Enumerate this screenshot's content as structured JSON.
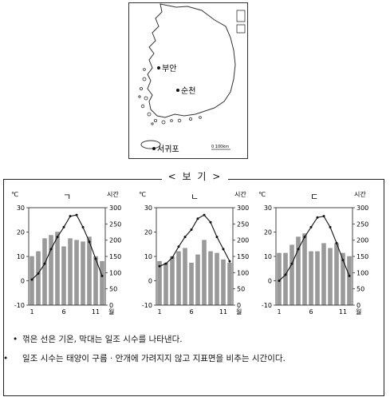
{
  "map": {
    "places": [
      "부안",
      "순천",
      "서귀포"
    ],
    "scale_text": "0  100km"
  },
  "bogi_title": "< 보 기 >",
  "notes": [
    "꺾은 선은 기온, 막대는 일조 시수를 나타낸다.",
    "일조 시수는 태양이 구름 · 안개에 가려지지 않고 지표면을 비추는 시간이다."
  ],
  "chart_data": [
    {
      "type": "bar",
      "title": "ㄱ",
      "x": [
        1,
        2,
        3,
        4,
        5,
        6,
        7,
        8,
        9,
        10,
        11,
        12
      ],
      "x_ticks": [
        "1",
        "6",
        "11"
      ],
      "xlabel": "월",
      "y_left_unit": "℃",
      "y_right_unit": "시간",
      "y_left_ticks": [
        "30",
        "20",
        "10",
        "0",
        "-10"
      ],
      "y_right_ticks": [
        "300",
        "250",
        "200",
        "150",
        "100",
        "50",
        "0"
      ],
      "ylim_left": [
        -10,
        30
      ],
      "ylim_right": [
        0,
        300
      ],
      "series": [
        {
          "kind": "bar",
          "axis": "right",
          "values": [
            150,
            165,
            205,
            215,
            225,
            180,
            205,
            200,
            195,
            210,
            150,
            135
          ]
        },
        {
          "kind": "line",
          "axis": "left",
          "values": [
            0.5,
            3,
            7,
            13,
            18,
            22,
            26.5,
            27,
            22,
            16,
            9,
            2
          ]
        }
      ]
    },
    {
      "type": "bar",
      "title": "ㄴ",
      "x": [
        1,
        2,
        3,
        4,
        5,
        6,
        7,
        8,
        9,
        10,
        11,
        12
      ],
      "x_ticks": [
        "1",
        "6",
        "11"
      ],
      "xlabel": "월",
      "y_left_unit": "℃",
      "y_right_unit": "시간",
      "y_left_ticks": [
        "30",
        "20",
        "10",
        "0",
        "-10"
      ],
      "y_right_ticks": [
        "300",
        "250",
        "200",
        "150",
        "100",
        "50",
        "0"
      ],
      "ylim_left": [
        -10,
        30
      ],
      "ylim_right": [
        0,
        300
      ],
      "series": [
        {
          "kind": "bar",
          "axis": "right",
          "values": [
            135,
            130,
            150,
            165,
            175,
            130,
            155,
            200,
            165,
            160,
            140,
            130
          ]
        },
        {
          "kind": "line",
          "axis": "left",
          "values": [
            6,
            7,
            9.5,
            14,
            18,
            21,
            25.5,
            27,
            24,
            18,
            13,
            8
          ]
        }
      ]
    },
    {
      "type": "bar",
      "title": "ㄷ",
      "x": [
        1,
        2,
        3,
        4,
        5,
        6,
        7,
        8,
        9,
        10,
        11,
        12
      ],
      "x_ticks": [
        "1",
        "6",
        "11"
      ],
      "xlabel": "월",
      "y_left_unit": "℃",
      "y_right_unit": "시간",
      "y_left_ticks": [
        "30",
        "20",
        "10",
        "0",
        "-10"
      ],
      "y_right_ticks": [
        "300",
        "250",
        "200",
        "150",
        "100",
        "50",
        "0"
      ],
      "ylim_left": [
        -10,
        30
      ],
      "ylim_right": [
        0,
        300
      ],
      "series": [
        {
          "kind": "bar",
          "axis": "right",
          "values": [
            160,
            160,
            185,
            210,
            220,
            165,
            165,
            190,
            175,
            190,
            160,
            150
          ]
        },
        {
          "kind": "line",
          "axis": "left",
          "values": [
            0,
            2.5,
            7,
            13,
            18,
            22,
            26,
            26.5,
            22,
            15.5,
            8.5,
            2
          ]
        }
      ]
    }
  ]
}
